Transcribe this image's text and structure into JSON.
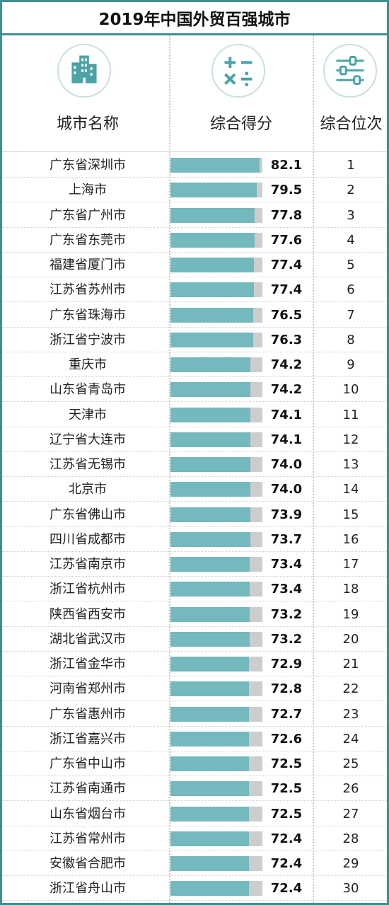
{
  "chart_data": {
    "type": "bar",
    "title": "2019年中国外贸百强城市",
    "column_headers": {
      "city": "城市名称",
      "score": "综合得分",
      "rank": "综合位次"
    },
    "icons": {
      "city": "city-buildings-icon",
      "score": "calculator-symbols-icon",
      "rank": "sliders-icon"
    },
    "colors": {
      "border": "#3d8f91",
      "bar": "#73b9bd",
      "bar_track": "#cdcdcd",
      "icon": "#4aa3a6"
    },
    "rows": [
      {
        "city": "广东省深圳市",
        "score": "82.1",
        "rank": "1"
      },
      {
        "city": "上海市",
        "score": "79.5",
        "rank": "2"
      },
      {
        "city": "广东省广州市",
        "score": "77.8",
        "rank": "3"
      },
      {
        "city": "广东省东莞市",
        "score": "77.6",
        "rank": "4"
      },
      {
        "city": "福建省厦门市",
        "score": "77.4",
        "rank": "5"
      },
      {
        "city": "江苏省苏州市",
        "score": "77.4",
        "rank": "6"
      },
      {
        "city": "广东省珠海市",
        "score": "76.5",
        "rank": "7"
      },
      {
        "city": "浙江省宁波市",
        "score": "76.3",
        "rank": "8"
      },
      {
        "city": "重庆市",
        "score": "74.2",
        "rank": "9"
      },
      {
        "city": "山东省青岛市",
        "score": "74.2",
        "rank": "10"
      },
      {
        "city": "天津市",
        "score": "74.1",
        "rank": "11"
      },
      {
        "city": "辽宁省大连市",
        "score": "74.1",
        "rank": "12"
      },
      {
        "city": "江苏省无锡市",
        "score": "74.0",
        "rank": "13"
      },
      {
        "city": "北京市",
        "score": "74.0",
        "rank": "14"
      },
      {
        "city": "广东省佛山市",
        "score": "73.9",
        "rank": "15"
      },
      {
        "city": "四川省成都市",
        "score": "73.7",
        "rank": "16"
      },
      {
        "city": "江苏省南京市",
        "score": "73.4",
        "rank": "17"
      },
      {
        "city": "浙江省杭州市",
        "score": "73.4",
        "rank": "18"
      },
      {
        "city": "陕西省西安市",
        "score": "73.2",
        "rank": "19"
      },
      {
        "city": "湖北省武汉市",
        "score": "73.2",
        "rank": "20"
      },
      {
        "city": "浙江省金华市",
        "score": "72.9",
        "rank": "21"
      },
      {
        "city": "河南省郑州市",
        "score": "72.8",
        "rank": "22"
      },
      {
        "city": "广东省惠州市",
        "score": "72.7",
        "rank": "23"
      },
      {
        "city": "浙江省嘉兴市",
        "score": "72.6",
        "rank": "24"
      },
      {
        "city": "广东省中山市",
        "score": "72.5",
        "rank": "25"
      },
      {
        "city": "江苏省南通市",
        "score": "72.5",
        "rank": "26"
      },
      {
        "city": "山东省烟台市",
        "score": "72.5",
        "rank": "27"
      },
      {
        "city": "江苏省常州市",
        "score": "72.4",
        "rank": "28"
      },
      {
        "city": "安徽省合肥市",
        "score": "72.4",
        "rank": "29"
      },
      {
        "city": "浙江省舟山市",
        "score": "72.4",
        "rank": "30"
      }
    ]
  }
}
